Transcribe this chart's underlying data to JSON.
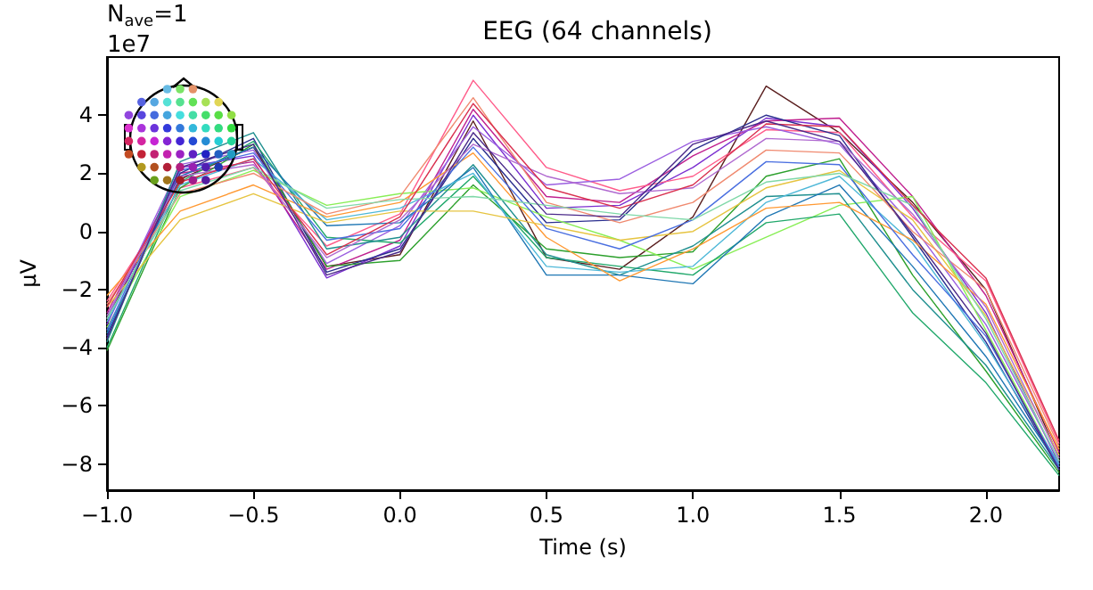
{
  "chart_data": {
    "type": "line",
    "title": "EEG (64 channels)",
    "xlabel": "Time (s)",
    "ylabel": "µV",
    "annotations": [
      "N$_{ave}$=1",
      "1e7"
    ],
    "x": [
      -1.0,
      -0.75,
      -0.5,
      -0.25,
      0.0,
      0.25,
      0.5,
      0.75,
      1.0,
      1.25,
      1.5,
      1.75,
      2.0,
      2.25
    ],
    "xlim": [
      -1.0,
      2.25
    ],
    "ylim": [
      -8.9,
      6.0
    ],
    "xticks": [
      {
        "value": -1.0,
        "label": "−1.0"
      },
      {
        "value": -0.5,
        "label": "−0.5"
      },
      {
        "value": 0.0,
        "label": "0.0"
      },
      {
        "value": 0.5,
        "label": "0.5"
      },
      {
        "value": 1.0,
        "label": "1.0"
      },
      {
        "value": 1.5,
        "label": "1.5"
      },
      {
        "value": 2.0,
        "label": "2.0"
      }
    ],
    "yticks": [
      {
        "value": -8,
        "label": "−8"
      },
      {
        "value": -6,
        "label": "−6"
      },
      {
        "value": -4,
        "label": "−4"
      },
      {
        "value": -2,
        "label": "−2"
      },
      0,
      2,
      4
    ],
    "grid": false,
    "series": [
      {
        "color": "#5a1f1f",
        "values": [
          -3.0,
          1.8,
          2.9,
          -1.2,
          -0.8,
          3.8,
          -0.9,
          -1.3,
          0.5,
          5.0,
          3.4,
          1.0,
          -2.0,
          -7.8
        ]
      },
      {
        "color": "#7b2fd0",
        "values": [
          -3.2,
          2.2,
          2.6,
          -1.6,
          -0.5,
          4.0,
          0.8,
          0.9,
          2.2,
          3.9,
          3.6,
          0.8,
          -2.8,
          -8.0
        ]
      },
      {
        "color": "#c0208f",
        "values": [
          -2.8,
          2.0,
          2.4,
          -1.3,
          -0.3,
          4.2,
          1.2,
          1.0,
          2.6,
          3.8,
          3.9,
          1.2,
          -2.2,
          -7.6
        ]
      },
      {
        "color": "#ff5c8a",
        "values": [
          -2.4,
          1.5,
          2.2,
          -0.5,
          0.6,
          5.2,
          2.2,
          1.4,
          1.9,
          3.5,
          3.4,
          0.5,
          -1.7,
          -7.3
        ]
      },
      {
        "color": "#9b5fe0",
        "values": [
          -3.0,
          2.3,
          2.8,
          -1.1,
          0.2,
          3.6,
          1.6,
          1.8,
          3.1,
          3.6,
          3.0,
          0.2,
          -3.2,
          -7.9
        ]
      },
      {
        "color": "#2b2f8f",
        "values": [
          -3.6,
          2.0,
          3.2,
          -1.4,
          -0.6,
          3.2,
          0.3,
          0.4,
          2.8,
          4.0,
          3.3,
          -0.2,
          -3.8,
          -8.2
        ]
      },
      {
        "color": "#2ca02c",
        "values": [
          -4.1,
          1.5,
          3.0,
          -1.2,
          -1.0,
          1.6,
          -0.6,
          -0.9,
          -0.7,
          1.9,
          2.5,
          -1.5,
          -4.8,
          -8.3
        ]
      },
      {
        "color": "#88ee55",
        "values": [
          -3.3,
          1.2,
          2.1,
          0.9,
          1.3,
          1.5,
          0.5,
          -0.3,
          -1.3,
          -0.2,
          0.9,
          1.2,
          -3.4,
          -8.1
        ]
      },
      {
        "color": "#21a86b",
        "values": [
          -4.0,
          1.7,
          3.1,
          -0.2,
          -0.4,
          1.9,
          -0.9,
          -1.2,
          -1.5,
          0.3,
          0.6,
          -2.8,
          -5.2,
          -8.4
        ]
      },
      {
        "color": "#1f8f8f",
        "values": [
          -3.8,
          2.4,
          3.4,
          -0.6,
          -0.2,
          2.3,
          -0.8,
          -1.5,
          -0.5,
          1.2,
          1.3,
          -2.0,
          -4.6,
          -8.2
        ]
      },
      {
        "color": "#1f77b4",
        "values": [
          -3.5,
          1.9,
          2.9,
          0.2,
          0.3,
          2.2,
          -1.5,
          -1.5,
          -1.8,
          0.5,
          1.6,
          -1.2,
          -4.3,
          -8.1
        ]
      },
      {
        "color": "#4fb8d8",
        "values": [
          -3.1,
          1.6,
          2.5,
          0.4,
          0.8,
          2.0,
          -1.2,
          -1.4,
          -1.2,
          1.0,
          1.9,
          -0.4,
          -3.9,
          -8.0
        ]
      },
      {
        "color": "#ff9933",
        "values": [
          -2.2,
          0.7,
          1.6,
          0.5,
          1.0,
          2.7,
          -0.2,
          -1.7,
          -0.6,
          0.8,
          1.0,
          -0.3,
          -2.5,
          -7.5
        ]
      },
      {
        "color": "#e6c440",
        "values": [
          -2.6,
          0.4,
          1.3,
          0.3,
          0.7,
          0.7,
          0.2,
          -0.3,
          0.0,
          1.5,
          2.1,
          0.4,
          -2.9,
          -7.7
        ]
      },
      {
        "color": "#4a6fe0",
        "values": [
          -3.4,
          2.1,
          2.7,
          -0.3,
          0.1,
          2.9,
          0.1,
          -0.6,
          0.4,
          2.4,
          2.3,
          -0.8,
          -3.6,
          -8.1
        ]
      },
      {
        "color": "#f08a70",
        "values": [
          -2.5,
          1.3,
          2.0,
          0.6,
          1.2,
          4.6,
          1.0,
          0.3,
          1.0,
          2.8,
          2.7,
          0.0,
          -2.0,
          -7.4
        ]
      },
      {
        "color": "#b06ad0",
        "values": [
          -2.9,
          1.9,
          2.3,
          -0.9,
          0.4,
          3.0,
          1.9,
          1.3,
          1.5,
          3.2,
          3.1,
          0.6,
          -2.6,
          -7.8
        ]
      },
      {
        "color": "#7fd8a8",
        "values": [
          -3.0,
          1.4,
          2.2,
          0.8,
          1.1,
          1.2,
          0.9,
          0.6,
          0.4,
          1.7,
          2.0,
          0.9,
          -3.0,
          -7.9
        ]
      },
      {
        "color": "#d9304f",
        "values": [
          -2.6,
          1.7,
          2.5,
          -0.8,
          0.5,
          4.4,
          1.5,
          0.8,
          1.6,
          3.7,
          3.6,
          0.9,
          -1.6,
          -7.2
        ]
      },
      {
        "color": "#4b2a8a",
        "values": [
          -3.7,
          2.2,
          3.0,
          -1.5,
          -0.7,
          3.4,
          0.6,
          0.5,
          3.0,
          3.8,
          3.1,
          -0.1,
          -3.5,
          -8.2
        ]
      }
    ]
  }
}
